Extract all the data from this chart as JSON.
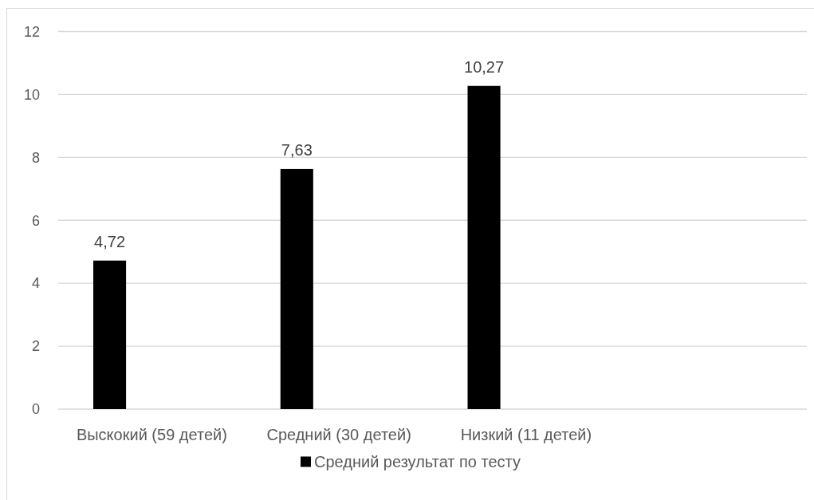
{
  "chart_data": {
    "type": "bar",
    "categories": [
      "Выскокий (59 детей)",
      "Средний (30 детей)",
      "Низкий (11 детей)",
      null
    ],
    "series": [
      {
        "name": "Средний результат по тесту",
        "color": "#000000",
        "values": [
          4.72,
          7.63,
          10.27,
          null
        ],
        "value_labels": [
          "4,72",
          "7,63",
          "10,27",
          null
        ]
      }
    ],
    "ylim": [
      0,
      12
    ],
    "yticks": [
      0,
      2,
      4,
      6,
      8,
      10,
      12
    ],
    "grid": "y",
    "legend": "bottom"
  }
}
